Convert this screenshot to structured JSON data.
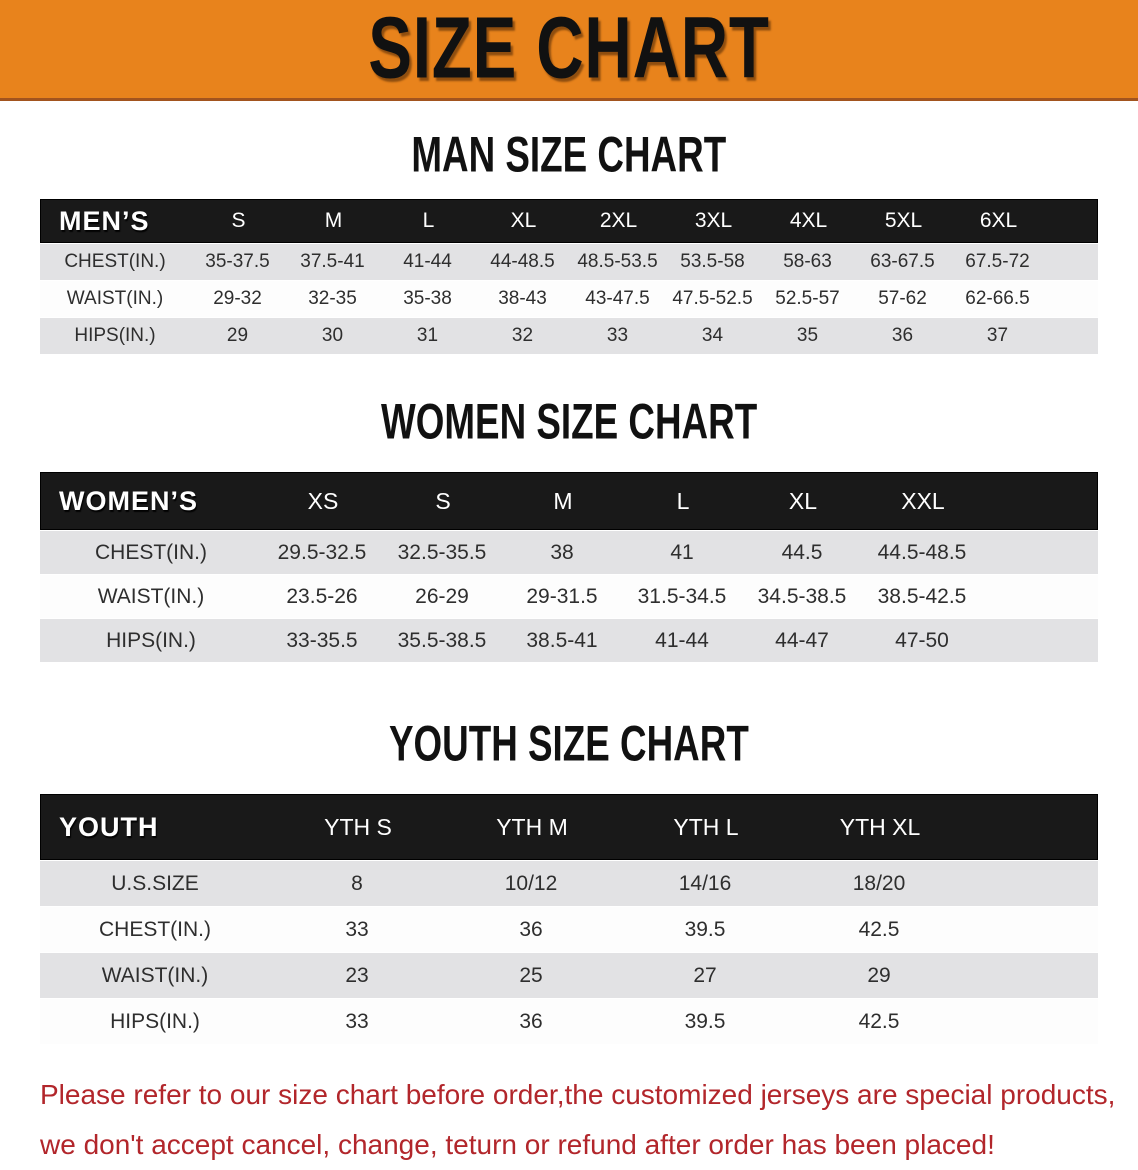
{
  "banner": {
    "title": "SIZE CHART"
  },
  "colors": {
    "banner_orange": "#e8831c",
    "header_black": "#191919",
    "row_gray": "#e2e2e4",
    "disclaimer_red": "#b2262b"
  },
  "sections": [
    {
      "heading": "MAN SIZE CHART",
      "table": {
        "label": "MEN’S",
        "columns": [
          "S",
          "M",
          "L",
          "XL",
          "2XL",
          "3XL",
          "4XL",
          "5XL",
          "6XL"
        ],
        "rows": [
          {
            "label": "CHEST(IN.)",
            "values": [
              "35-37.5",
              "37.5-41",
              "41-44",
              "44-48.5",
              "48.5-53.5",
              "53.5-58",
              "58-63",
              "63-67.5",
              "67.5-72"
            ]
          },
          {
            "label": "WAIST(IN.)",
            "values": [
              "29-32",
              "32-35",
              "35-38",
              "38-43",
              "43-47.5",
              "47.5-52.5",
              "52.5-57",
              "57-62",
              "62-66.5"
            ]
          },
          {
            "label": "HIPS(IN.)",
            "values": [
              "29",
              "30",
              "31",
              "32",
              "33",
              "34",
              "35",
              "36",
              "37"
            ]
          }
        ]
      }
    },
    {
      "heading": "WOMEN SIZE CHART",
      "table": {
        "label": "WOMEN’S",
        "columns": [
          "XS",
          "S",
          "M",
          "L",
          "XL",
          "XXL"
        ],
        "rows": [
          {
            "label": "CHEST(IN.)",
            "values": [
              "29.5-32.5",
              "32.5-35.5",
              "38",
              "41",
              "44.5",
              "44.5-48.5"
            ]
          },
          {
            "label": "WAIST(IN.)",
            "values": [
              "23.5-26",
              "26-29",
              "29-31.5",
              "31.5-34.5",
              "34.5-38.5",
              "38.5-42.5"
            ]
          },
          {
            "label": "HIPS(IN.)",
            "values": [
              "33-35.5",
              "35.5-38.5",
              "38.5-41",
              "41-44",
              "44-47",
              "47-50"
            ]
          }
        ]
      }
    },
    {
      "heading": "YOUTH SIZE CHART",
      "table": {
        "label": "YOUTH",
        "columns": [
          "YTH S",
          "YTH M",
          "YTH L",
          "YTH XL"
        ],
        "rows": [
          {
            "label": "U.S.SIZE",
            "values": [
              "8",
              "10/12",
              "14/16",
              "18/20"
            ]
          },
          {
            "label": "CHEST(IN.)",
            "values": [
              "33",
              "36",
              "39.5",
              "42.5"
            ]
          },
          {
            "label": "WAIST(IN.)",
            "values": [
              "23",
              "25",
              "27",
              "29"
            ]
          },
          {
            "label": "HIPS(IN.)",
            "values": [
              "33",
              "36",
              "39.5",
              "42.5"
            ]
          }
        ]
      }
    }
  ],
  "disclaimer": {
    "line1": "Please refer to our size chart before order,the customized jerseys are special products,",
    "line2": "we don't accept cancel, change, teturn or refund after order has been placed!"
  }
}
